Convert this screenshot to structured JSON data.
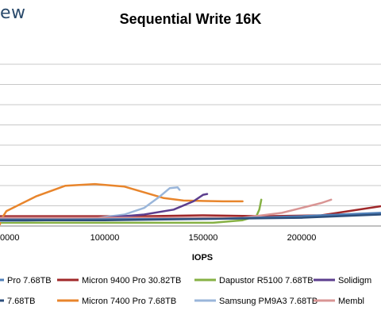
{
  "logo_text": "ew",
  "chart_data": {
    "type": "line",
    "title": "Sequential Write 16K",
    "xlabel": "IOPS",
    "ylabel": "",
    "grid": true,
    "legend_position": "bottom",
    "xticks": [
      100000,
      150000,
      200000
    ],
    "xtick_labels": [
      "100000",
      "150000",
      "200000"
    ],
    "xtick_partial_left": "0000",
    "ylim": [
      0,
      11
    ],
    "series": [
      {
        "name": "Micron 9400 Pro 30.82TB",
        "color": "#a0282a",
        "points": [
          [
            0,
            0.6
          ],
          [
            60000,
            0.6
          ],
          [
            120000,
            0.6
          ],
          [
            150000,
            0.65
          ],
          [
            180000,
            0.6
          ],
          [
            210000,
            0.65
          ],
          [
            240000,
            1.2
          ]
        ]
      },
      {
        "name": "Dapustor R5100 7.68TB",
        "color": "#86b144",
        "points": [
          [
            0,
            0.25
          ],
          [
            40000,
            0.2
          ],
          [
            90000,
            0.2
          ],
          [
            130000,
            0.2
          ],
          [
            155000,
            0.2
          ],
          [
            170000,
            0.35
          ],
          [
            177000,
            0.6
          ],
          [
            178500,
            1.0
          ],
          [
            179500,
            1.6
          ]
        ]
      },
      {
        "name": "Micron 7400 Pro 7.68TB",
        "color": "#e8852c",
        "points": [
          [
            15000,
            0.1
          ],
          [
            30000,
            0.3
          ],
          [
            50000,
            0.9
          ],
          [
            65000,
            1.8
          ],
          [
            80000,
            2.45
          ],
          [
            95000,
            2.55
          ],
          [
            110000,
            2.4
          ],
          [
            130000,
            1.7
          ],
          [
            140000,
            1.55
          ],
          [
            160000,
            1.5
          ],
          [
            170000,
            1.5
          ]
        ]
      },
      {
        "name": "Samsung PM9A3 7.68TB",
        "color": "#9ab6da",
        "points": [
          [
            0,
            0.3
          ],
          [
            50000,
            0.3
          ],
          [
            90000,
            0.4
          ],
          [
            110000,
            0.7
          ],
          [
            120000,
            1.1
          ],
          [
            128000,
            1.8
          ],
          [
            133000,
            2.3
          ],
          [
            137000,
            2.35
          ],
          [
            138000,
            2.2
          ]
        ]
      },
      {
        "name": "Solidigm",
        "color": "#5c3e8e",
        "points": [
          [
            0,
            0.5
          ],
          [
            60000,
            0.5
          ],
          [
            100000,
            0.5
          ],
          [
            120000,
            0.7
          ],
          [
            135000,
            1.0
          ],
          [
            145000,
            1.5
          ],
          [
            150000,
            1.9
          ],
          [
            152000,
            1.95
          ]
        ]
      },
      {
        "name": "Membl",
        "color": "#d99594",
        "points": [
          [
            0,
            0.5
          ],
          [
            120000,
            0.5
          ],
          [
            170000,
            0.5
          ],
          [
            190000,
            0.8
          ],
          [
            200000,
            1.1
          ],
          [
            210000,
            1.4
          ],
          [
            215000,
            1.6
          ]
        ]
      },
      {
        "name": "Pro 7.68TB",
        "color": "#4f7fb8",
        "points": [
          [
            0,
            0.4
          ],
          [
            80000,
            0.4
          ],
          [
            160000,
            0.45
          ],
          [
            200000,
            0.6
          ],
          [
            240000,
            0.8
          ]
        ]
      },
      {
        "name": "7.68TB",
        "color": "#2d4f7c",
        "points": [
          [
            0,
            0.35
          ],
          [
            100000,
            0.35
          ],
          [
            200000,
            0.5
          ],
          [
            240000,
            0.7
          ]
        ]
      }
    ]
  },
  "legend": [
    {
      "label": "Pro 7.68TB",
      "color": "#4f7fb8"
    },
    {
      "label": "Micron 9400 Pro 30.82TB",
      "color": "#a0282a"
    },
    {
      "label": "Dapustor R5100 7.68TB",
      "color": "#86b144"
    },
    {
      "label": "Solidigm",
      "color": "#5c3e8e"
    },
    {
      "label": "7.68TB",
      "color": "#2d4f7c"
    },
    {
      "label": "Micron 7400 Pro 7.68TB",
      "color": "#e8852c"
    },
    {
      "label": "Samsung PM9A3 7.68TB",
      "color": "#9ab6da"
    },
    {
      "label": "Membl",
      "color": "#d99594"
    }
  ]
}
